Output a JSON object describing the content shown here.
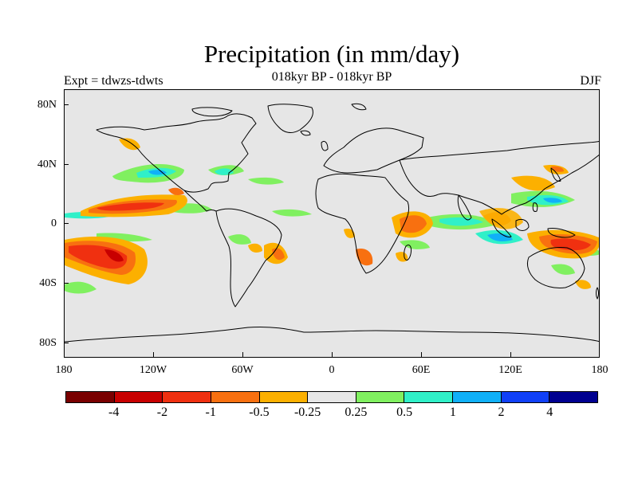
{
  "title": "Precipitation (in mm/day)",
  "subtitle": "018kyr BP - 018kyr BP",
  "left_label": "Expt = tdwzs-tdwts",
  "right_label": "DJF",
  "y_ticks": [
    "80N",
    "40N",
    "0",
    "40S",
    "80S"
  ],
  "x_ticks": [
    "180",
    "120W",
    "60W",
    "0",
    "60E",
    "120E",
    "180"
  ],
  "colorbar": {
    "colors": [
      "#7a0000",
      "#c80000",
      "#f03010",
      "#f87010",
      "#fcb000",
      "#e6e6e6",
      "#80f060",
      "#30f0c8",
      "#10b0f8",
      "#1040f8",
      "#000090"
    ],
    "labels": [
      "-4",
      "-2",
      "-1",
      "-0.5",
      "-0.25",
      "0.25",
      "0.5",
      "1",
      "2",
      "4"
    ]
  },
  "chart_data": {
    "type": "heatmap",
    "title": "Precipitation (in mm/day)",
    "subtitle": "018kyr BP - 018kyr BP",
    "annotations": [
      "Expt = tdwzs-tdwts",
      "DJF"
    ],
    "xlim": [
      -180,
      180
    ],
    "ylim": [
      -90,
      90
    ],
    "levels": [
      -4,
      -2,
      -1,
      -0.5,
      -0.25,
      0.25,
      0.5,
      1,
      2,
      4
    ]
  }
}
